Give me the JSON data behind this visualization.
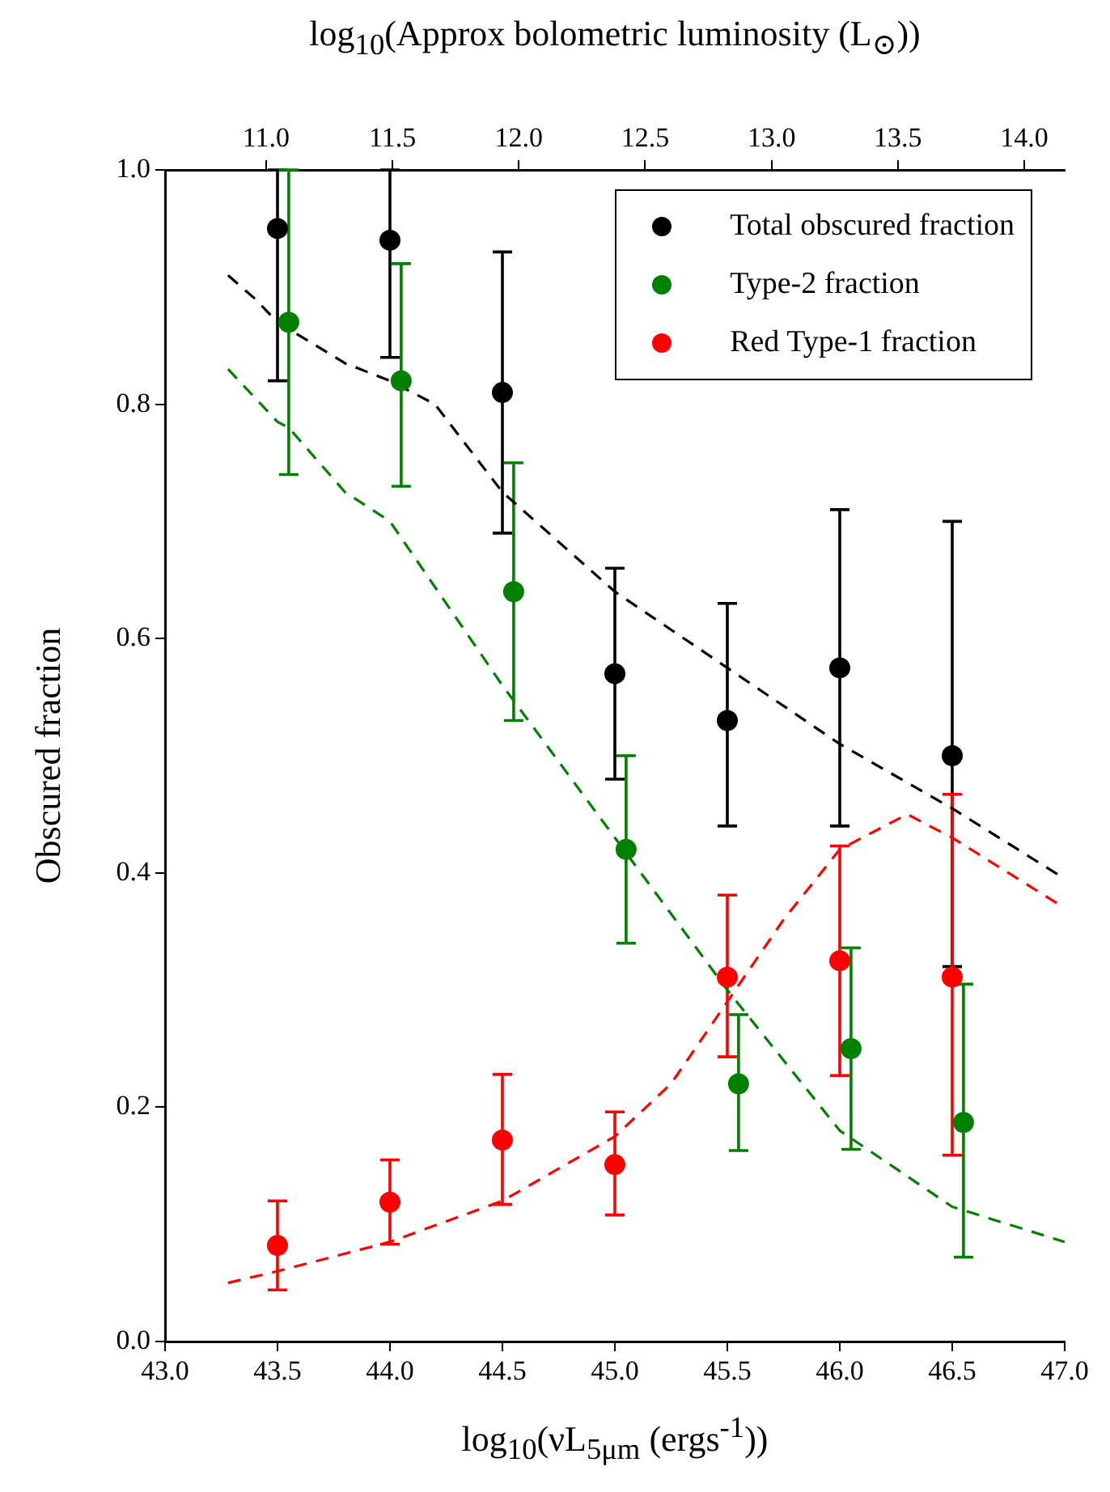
{
  "chart_data": {
    "type": "scatter",
    "xlabel": "log$_{10}$(νL$_{5μm}$ (ergs$^{-1}$))",
    "ylabel": "Obscured fraction",
    "x2label": "log$_{10}$(Approx bolometric luminosity (L$_{⊙}$))",
    "xlim": [
      43.0,
      47.0
    ],
    "xticks": [
      {
        "value": 43,
        "label": "43.0"
      },
      {
        "value": 43.5,
        "label": "43.5"
      },
      {
        "value": 44,
        "label": "44.0"
      },
      {
        "value": 44.5,
        "label": "44.5"
      },
      {
        "value": 45,
        "label": "45.0"
      },
      {
        "value": 45.5,
        "label": "45.5"
      },
      {
        "value": 46,
        "label": "46.0"
      },
      {
        "value": 46.5,
        "label": "46.5"
      },
      {
        "value": 47,
        "label": "47.0"
      }
    ],
    "x2lim": [
      10.6,
      14.16
    ],
    "x2ticks": [
      {
        "value": 11,
        "label": "11.0"
      },
      11.5,
      {
        "value": 12,
        "label": "12.0"
      },
      12.5,
      {
        "value": 13,
        "label": "13.0"
      },
      13.5,
      {
        "value": 14,
        "label": "14.0"
      }
    ],
    "ylim": [
      0,
      1
    ],
    "yticks": [
      {
        "value": 0,
        "label": "0.0"
      },
      0.2,
      0.4,
      0.6,
      0.8,
      {
        "value": 1,
        "label": "1.0"
      }
    ],
    "grid": false,
    "legend": "top right",
    "marker": "circle",
    "series": [
      {
        "name": "Total obscured fraction",
        "color": "#000000",
        "x": [
          43.5,
          44.0,
          44.5,
          45.0,
          45.5,
          46.0,
          46.5
        ],
        "values": [
          0.95,
          0.94,
          0.81,
          0.57,
          0.53,
          0.575,
          0.5
        ],
        "errors": [
          [
            0.82,
            1.0
          ],
          [
            0.84,
            1.0
          ],
          [
            0.69,
            0.93
          ],
          [
            0.48,
            0.66
          ],
          [
            0.44,
            0.63
          ],
          [
            0.44,
            0.71
          ],
          [
            0.32,
            0.7
          ]
        ]
      },
      {
        "name": "Type-2 fraction",
        "color": "#008000",
        "x": [
          43.55,
          44.05,
          44.55,
          45.05,
          45.55,
          46.05,
          46.55
        ],
        "values": [
          0.87,
          0.82,
          0.64,
          0.42,
          0.22,
          0.25,
          0.187
        ],
        "errors": [
          [
            0.74,
            1.0
          ],
          [
            0.73,
            0.92
          ],
          [
            0.53,
            0.75
          ],
          [
            0.34,
            0.5
          ],
          [
            0.163,
            0.279
          ],
          [
            0.164,
            0.336
          ],
          [
            0.072,
            0.305
          ]
        ]
      },
      {
        "name": "Red Type-1 fraction",
        "color": "#ff0000",
        "x": [
          43.5,
          44.0,
          44.5,
          45.0,
          45.5,
          46.0,
          46.5
        ],
        "values": [
          0.082,
          0.119,
          0.172,
          0.151,
          0.311,
          0.325,
          0.311
        ],
        "errors": [
          [
            0.044,
            0.12
          ],
          [
            0.083,
            0.155
          ],
          [
            0.117,
            0.228
          ],
          [
            0.108,
            0.196
          ],
          [
            0.243,
            0.381
          ],
          [
            0.227,
            0.423
          ],
          [
            0.159,
            0.467
          ]
        ]
      },
      {
        "type": "line",
        "color": "#000000",
        "line_style": "dashed",
        "marker": "none",
        "x": [
          43.28,
          43.4,
          43.5,
          43.8,
          44.0,
          44.2,
          44.5,
          45.0,
          45.5,
          46.0,
          46.5,
          47.0
        ],
        "values": [
          0.91,
          0.89,
          0.87,
          0.835,
          0.82,
          0.8,
          0.725,
          0.64,
          0.575,
          0.51,
          0.455,
          0.395
        ]
      },
      {
        "type": "line",
        "color": "#008000",
        "line_style": "dashed",
        "marker": "none",
        "x": [
          43.28,
          43.5,
          43.55,
          43.8,
          44.0,
          44.5,
          45.0,
          45.5,
          45.75,
          46.0,
          46.5,
          47.0
        ],
        "values": [
          0.83,
          0.785,
          0.78,
          0.725,
          0.7,
          0.56,
          0.43,
          0.3,
          0.24,
          0.18,
          0.115,
          0.085
        ]
      },
      {
        "type": "line",
        "color": "#ff0000",
        "line_style": "dashed",
        "marker": "none",
        "x": [
          43.28,
          43.5,
          44.0,
          44.5,
          45.0,
          45.25,
          45.5,
          45.75,
          46.0,
          46.3,
          46.5,
          47.0
        ],
        "values": [
          0.05,
          0.06,
          0.085,
          0.12,
          0.175,
          0.22,
          0.29,
          0.36,
          0.42,
          0.45,
          0.43,
          0.37
        ]
      }
    ]
  }
}
